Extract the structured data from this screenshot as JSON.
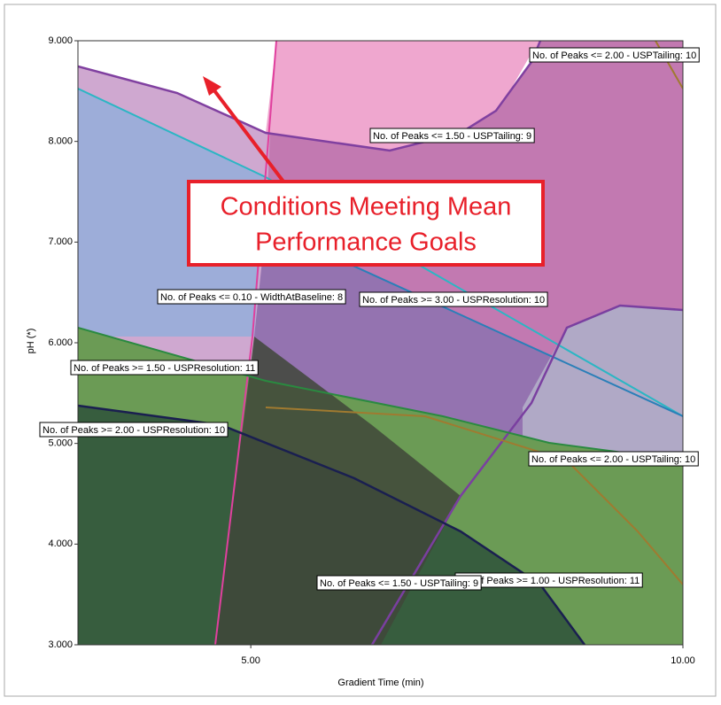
{
  "chart_data": {
    "type": "overlay",
    "x_label": "Gradient Time (min)",
    "y_label": "pH (*)",
    "xlim": [
      3,
      10
    ],
    "ylim": [
      3,
      9
    ],
    "xticks": [
      {
        "value": 5,
        "label": "5.00"
      },
      {
        "value": 10,
        "label": "10.00"
      }
    ],
    "yticks": [
      {
        "value": 3,
        "label": "3.000"
      },
      {
        "value": 4,
        "label": "4.000"
      },
      {
        "value": 5,
        "label": "5.000"
      },
      {
        "value": 6,
        "label": "6.000"
      },
      {
        "value": 7,
        "label": "7.000"
      },
      {
        "value": 8,
        "label": "8.000"
      },
      {
        "value": 9,
        "label": "9.000"
      }
    ],
    "annotations": [
      "No. of Peaks <= 2.00 - USPTailing: 10",
      "No. of Peaks <= 1.50 - USPTailing: 9",
      "No. of Peaks <= 0.10 - WidthAtBaseline: 8",
      "No. of Peaks >= 3.00 - USPResolution: 10",
      "No. of Peaks >= 1.50 - USPResolution: 11",
      "No. of Peaks >= 2.00 - USPResolution: 10",
      "No. of Peaks <= 2.00 - USPTailing: 10",
      "No. of Peaks >= 1.00 - USPResolution: 11",
      "No. of Peaks <= 1.50 - USPTailing: 9"
    ],
    "callout": [
      "Conditions Meeting Mean",
      "Performance Goals"
    ]
  }
}
